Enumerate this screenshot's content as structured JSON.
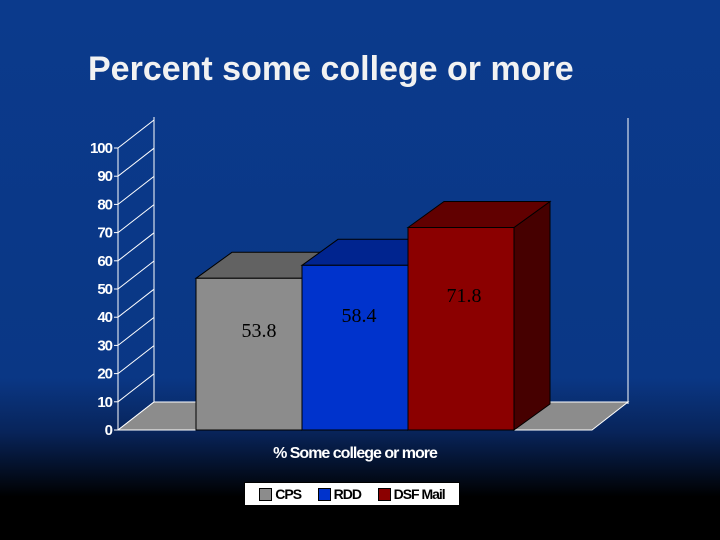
{
  "chart_data": {
    "type": "bar",
    "title": "Percent some college or more",
    "xlabel": "% Some college or more",
    "ylabel": "",
    "ylim": [
      0,
      100
    ],
    "yticks": [
      0,
      10,
      20,
      30,
      40,
      50,
      60,
      70,
      80,
      90,
      100
    ],
    "categories": [
      "% Some college or more"
    ],
    "series": [
      {
        "name": "CPS",
        "values": [
          53.8
        ],
        "label": "53.8",
        "color": "#8c8c8c"
      },
      {
        "name": "RDD",
        "values": [
          58.4
        ],
        "label": "58.4",
        "color": "#0033cc"
      },
      {
        "name": "DSF Mail",
        "values": [
          71.8
        ],
        "label": "71.8",
        "color": "#8b0000"
      }
    ],
    "legend_position": "bottom",
    "grid": true,
    "style": "3d"
  }
}
